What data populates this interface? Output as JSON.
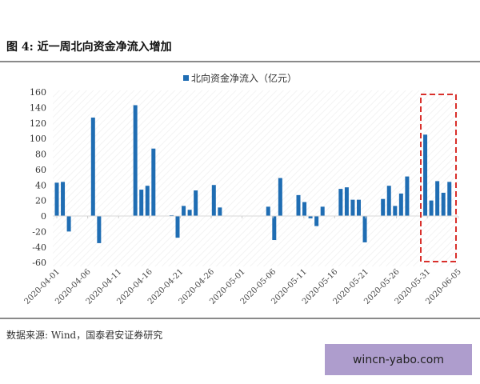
{
  "figure": {
    "title": "图 4: 近一周北向资金净流入增加",
    "source": "数据来源: Wind，国泰君安证券研究",
    "watermark": "wincn-yabo.com"
  },
  "colors": {
    "bar": "#1f6db3",
    "highlight_box": "#d9302b",
    "axis": "#d9d9d9",
    "rule": "#8a8a8a",
    "watermark_bg": "#ae9dcd"
  },
  "chart_data": {
    "type": "bar",
    "title": "",
    "legend": [
      "北向资金净流入（亿元）"
    ],
    "legend_position": "top",
    "xlabel": "",
    "ylabel": "",
    "ylim": [
      -60,
      160
    ],
    "yticks": [
      160,
      140,
      120,
      100,
      80,
      60,
      40,
      20,
      0,
      -20,
      -40,
      -60
    ],
    "xtick_labels": [
      "2020-04-01",
      "2020-04-06",
      "2020-04-11",
      "2020-04-16",
      "2020-04-21",
      "2020-04-26",
      "2020-05-01",
      "2020-05-06",
      "2020-05-11",
      "2020-05-16",
      "2020-05-21",
      "2020-05-26",
      "2020-05-31",
      "2020-06-05"
    ],
    "grid": false,
    "highlight": {
      "label": "近一周",
      "from_index": 60,
      "to_index": 64
    },
    "series": [
      {
        "name": "北向资金净流入（亿元）",
        "points": [
          {
            "slot": 0,
            "value": 43
          },
          {
            "slot": 1,
            "value": 44
          },
          {
            "slot": 2,
            "value": -20
          },
          {
            "slot": 6,
            "value": 127
          },
          {
            "slot": 7,
            "value": -35
          },
          {
            "slot": 13,
            "value": 143
          },
          {
            "slot": 14,
            "value": 34
          },
          {
            "slot": 15,
            "value": 39
          },
          {
            "slot": 16,
            "value": 87
          },
          {
            "slot": 19,
            "value": 1
          },
          {
            "slot": 20,
            "value": -28
          },
          {
            "slot": 21,
            "value": 13
          },
          {
            "slot": 22,
            "value": 8
          },
          {
            "slot": 23,
            "value": 33
          },
          {
            "slot": 26,
            "value": 40
          },
          {
            "slot": 27,
            "value": 11
          },
          {
            "slot": 35,
            "value": 12
          },
          {
            "slot": 36,
            "value": -31
          },
          {
            "slot": 37,
            "value": 49
          },
          {
            "slot": 40,
            "value": 27
          },
          {
            "slot": 41,
            "value": 18
          },
          {
            "slot": 42,
            "value": -3
          },
          {
            "slot": 43,
            "value": -13
          },
          {
            "slot": 44,
            "value": 12
          },
          {
            "slot": 47,
            "value": 35
          },
          {
            "slot": 48,
            "value": 37
          },
          {
            "slot": 49,
            "value": 21
          },
          {
            "slot": 50,
            "value": 21
          },
          {
            "slot": 51,
            "value": -34
          },
          {
            "slot": 54,
            "value": 22
          },
          {
            "slot": 55,
            "value": 39
          },
          {
            "slot": 56,
            "value": 13
          },
          {
            "slot": 57,
            "value": 29
          },
          {
            "slot": 58,
            "value": 51
          },
          {
            "slot": 61,
            "value": 105
          },
          {
            "slot": 62,
            "value": 20
          },
          {
            "slot": 63,
            "value": 45
          },
          {
            "slot": 64,
            "value": 30
          },
          {
            "slot": 65,
            "value": 44
          }
        ]
      }
    ]
  }
}
